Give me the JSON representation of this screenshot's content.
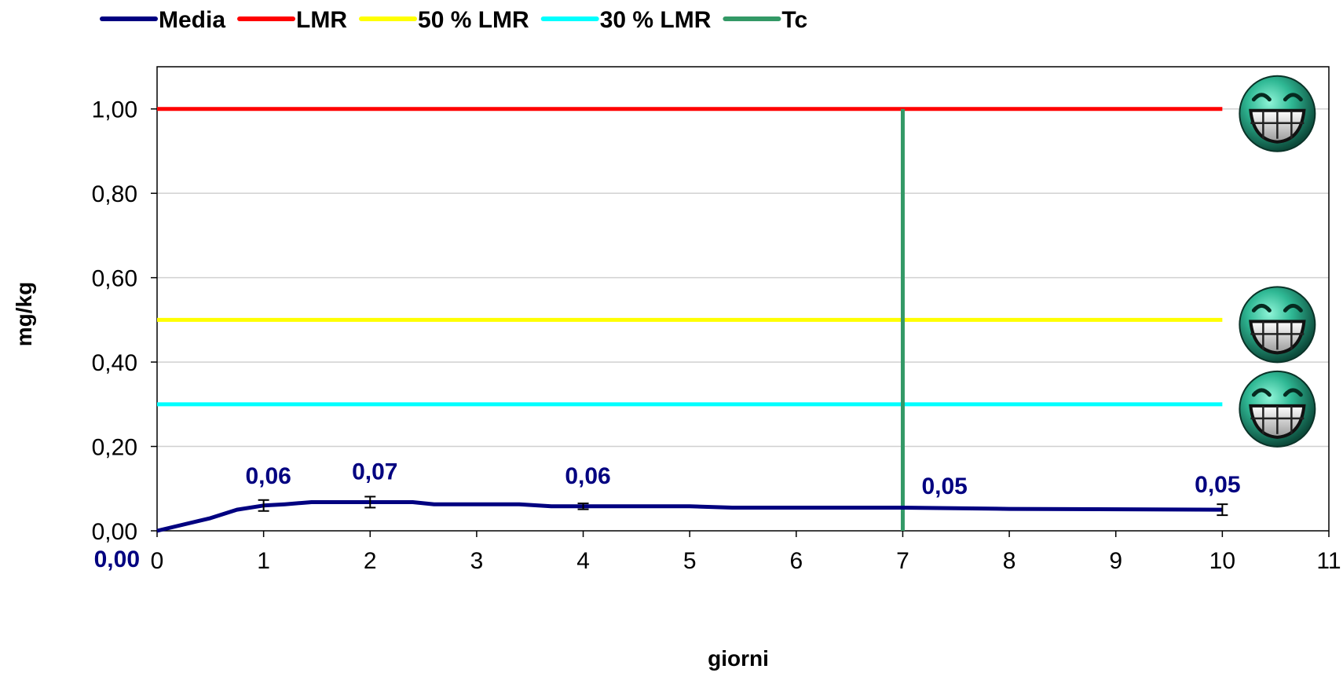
{
  "chart_data": {
    "type": "line",
    "xlabel": "giorni",
    "ylabel": "mg/kg",
    "xlim": [
      0,
      11
    ],
    "ylim": [
      0,
      1.1
    ],
    "x_ticks": [
      "0",
      "1",
      "2",
      "3",
      "4",
      "5",
      "6",
      "7",
      "8",
      "9",
      "10",
      "11"
    ],
    "y_ticks": [
      "0,00",
      "0,20",
      "0,40",
      "0,60",
      "0,80",
      "1,00"
    ],
    "grid": "horizontal",
    "legend_position": "top",
    "series": [
      {
        "name": "Media",
        "color": "#000080",
        "points": [
          [
            0,
            0
          ],
          [
            0.5,
            0.03
          ],
          [
            0.75,
            0.05
          ],
          [
            1,
            0.06
          ],
          [
            1.2,
            0.063
          ],
          [
            1.45,
            0.068
          ],
          [
            2,
            0.068
          ],
          [
            2.4,
            0.068
          ],
          [
            2.6,
            0.063
          ],
          [
            3.4,
            0.063
          ],
          [
            3.7,
            0.058
          ],
          [
            4,
            0.058
          ],
          [
            5,
            0.058
          ],
          [
            5.4,
            0.055
          ],
          [
            7,
            0.055
          ],
          [
            8,
            0.052
          ],
          [
            10,
            0.05
          ]
        ],
        "error_bars": [
          {
            "x": 1,
            "y": 0.06,
            "err": 0.013
          },
          {
            "x": 2,
            "y": 0.068,
            "err": 0.013
          },
          {
            "x": 4,
            "y": 0.058,
            "err": 0.007
          },
          {
            "x": 10,
            "y": 0.05,
            "err": 0.013
          }
        ],
        "data_labels": [
          {
            "x": 0,
            "y": 0,
            "text": "0,00"
          },
          {
            "x": 1,
            "y": 0.06,
            "text": "0,06"
          },
          {
            "x": 2,
            "y": 0.07,
            "text": "0,07"
          },
          {
            "x": 4,
            "y": 0.06,
            "text": "0,06"
          },
          {
            "x": 7,
            "y": 0.05,
            "text": "0,05"
          },
          {
            "x": 10,
            "y": 0.05,
            "text": "0,05"
          }
        ]
      },
      {
        "name": "LMR",
        "color": "#ff0000",
        "points": [
          [
            0,
            1.0
          ],
          [
            10,
            1.0
          ]
        ]
      },
      {
        "name": "50 % LMR",
        "color": "#ffff00",
        "points": [
          [
            0,
            0.5
          ],
          [
            10,
            0.5
          ]
        ]
      },
      {
        "name": "30 % LMR",
        "color": "#00ffff",
        "points": [
          [
            0,
            0.3
          ],
          [
            10,
            0.3
          ]
        ]
      },
      {
        "name": "Tc",
        "color": "#339966",
        "points": [
          [
            7,
            0
          ],
          [
            7,
            1.0
          ]
        ]
      }
    ],
    "markers": [
      {
        "icon": "grinning-face-icon",
        "x": 10,
        "y": 1.0
      },
      {
        "icon": "grinning-face-icon",
        "x": 10,
        "y": 0.5
      },
      {
        "icon": "grinning-face-icon",
        "x": 10,
        "y": 0.3
      }
    ]
  }
}
